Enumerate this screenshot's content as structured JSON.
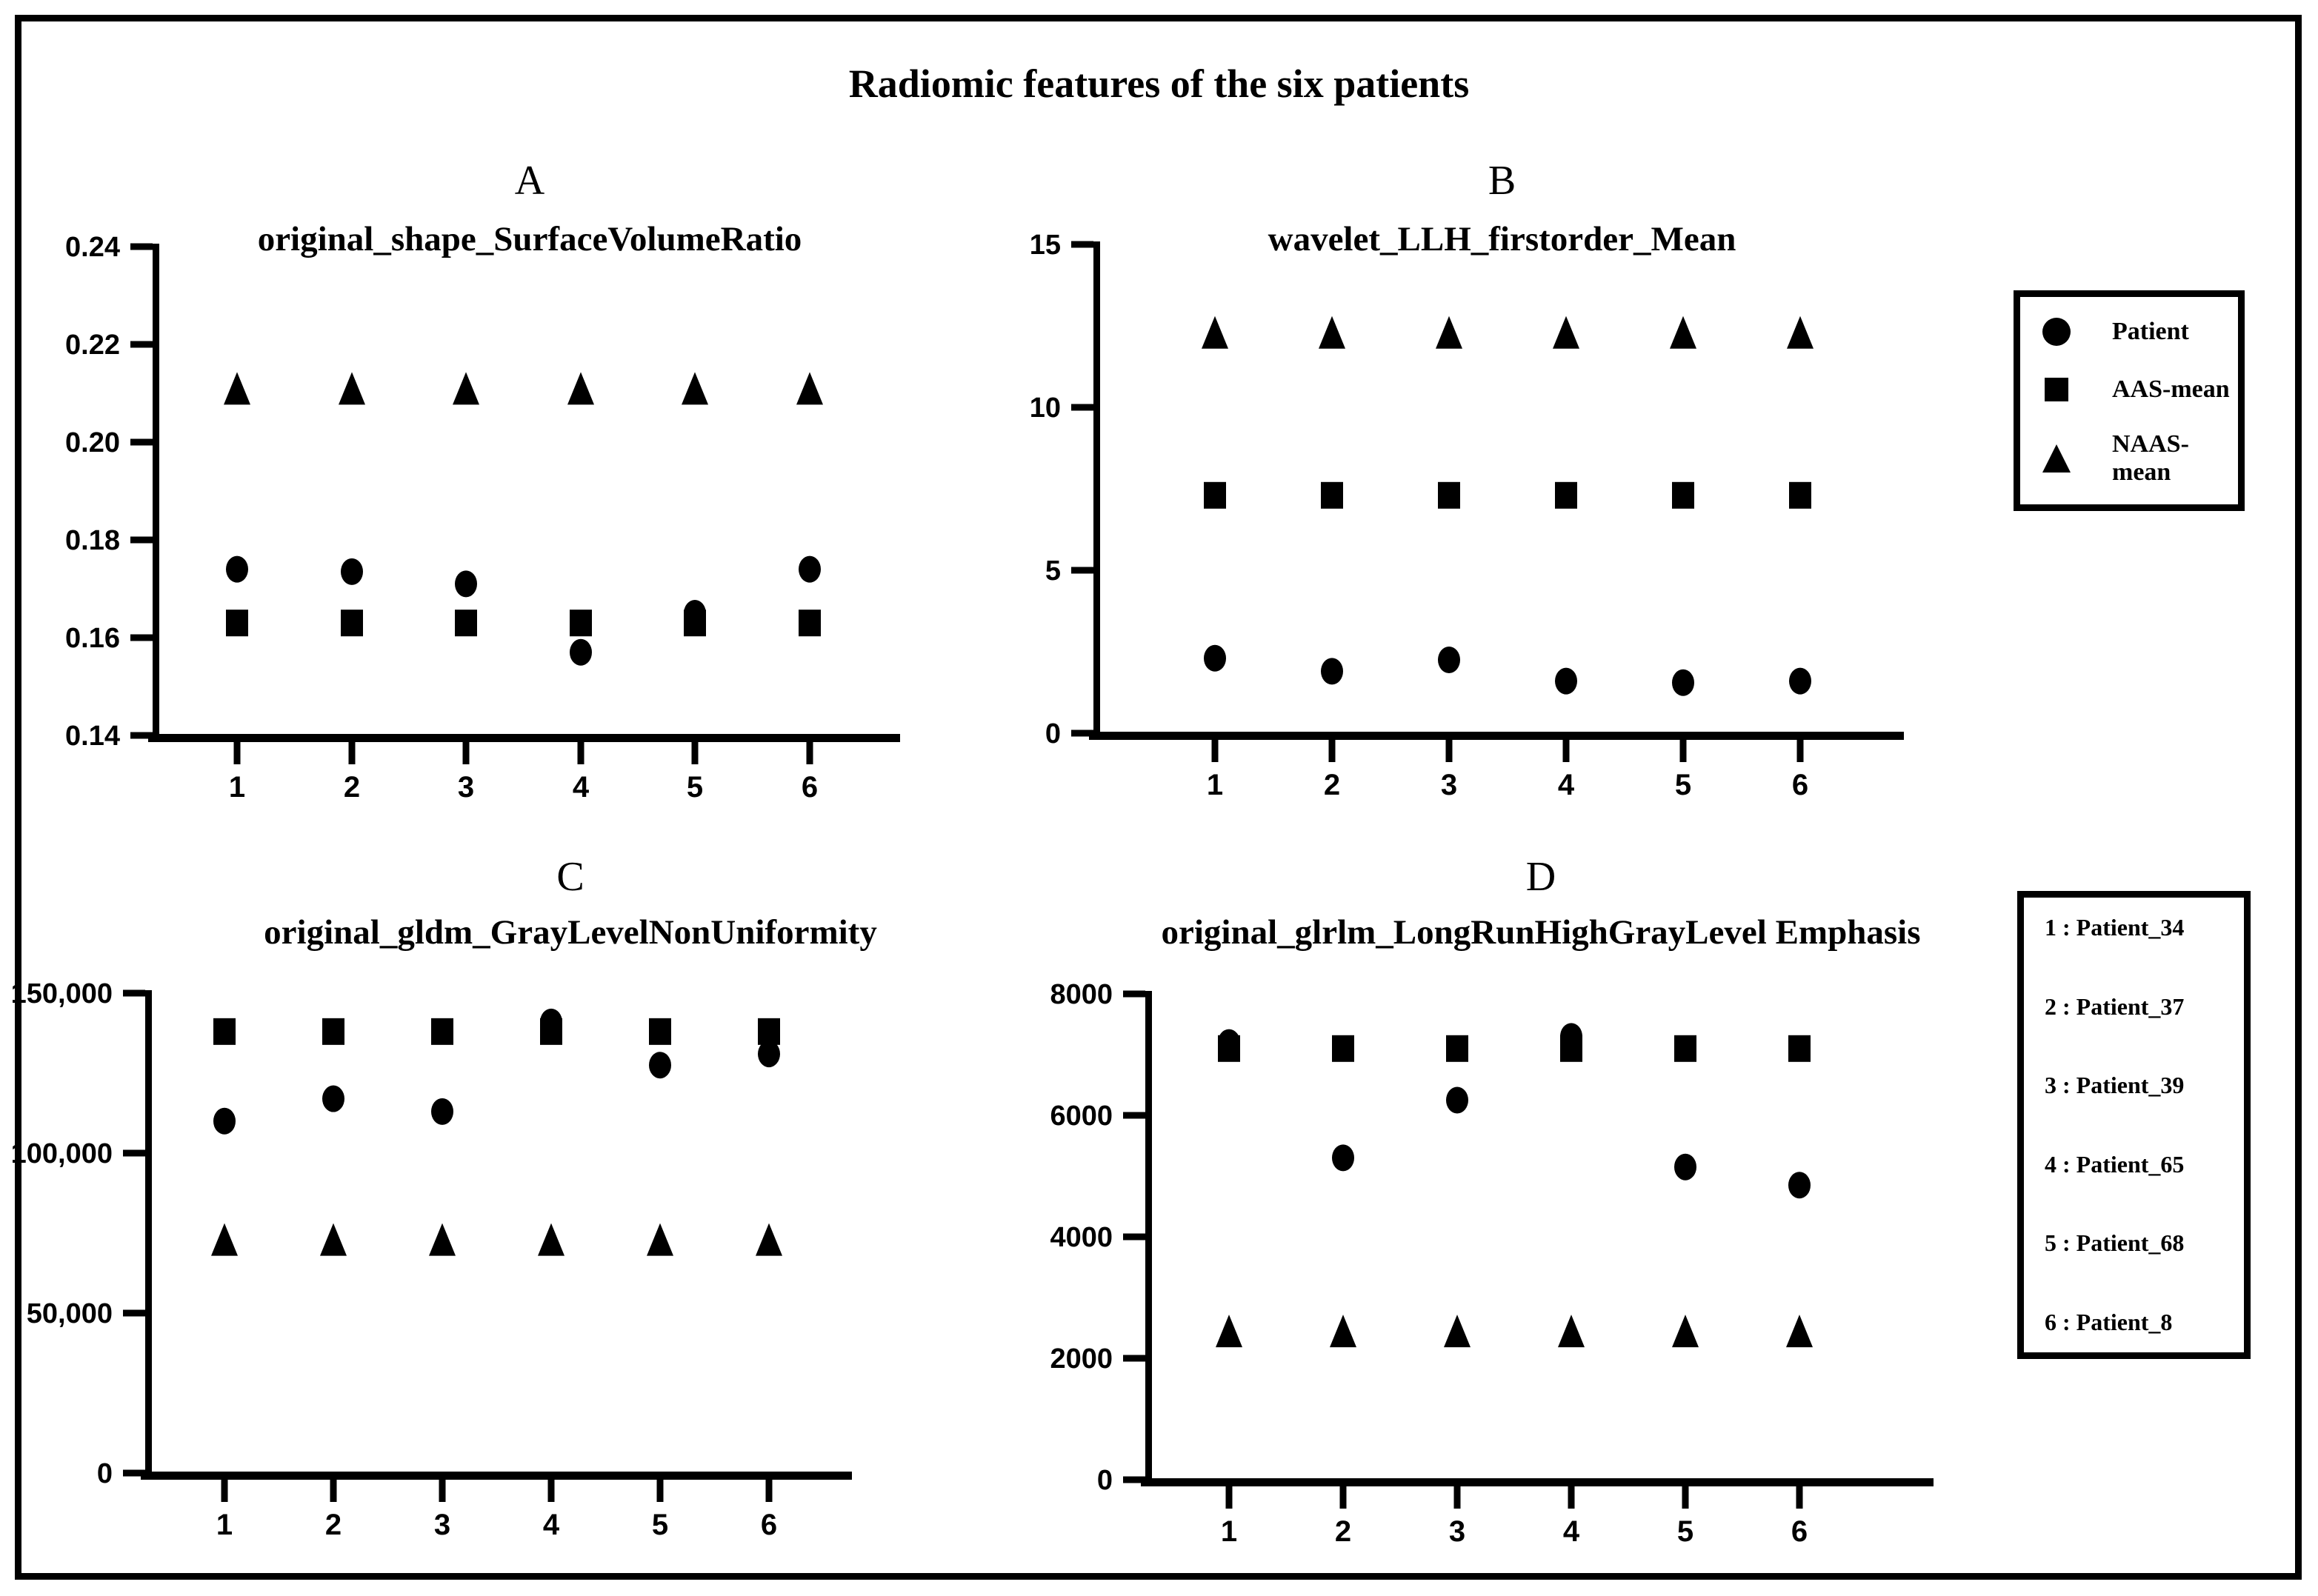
{
  "colors": {
    "foreground": "#000000",
    "background": "#ffffff"
  },
  "main_title": "Radiomic features of the six patients",
  "marker_legend": {
    "items": [
      {
        "marker": "circle",
        "label": "Patient"
      },
      {
        "marker": "square",
        "label": "AAS-mean"
      },
      {
        "marker": "triangle",
        "label": "NAAS-mean"
      }
    ]
  },
  "patient_legend": {
    "items": [
      "1 : Patient_34",
      "2 : Patient_37",
      "3 : Patient_39",
      "4 : Patient_65",
      "5 : Patient_68",
      "6 : Patient_8"
    ]
  },
  "chart_data": [
    {
      "id": "A",
      "panel_label": "A",
      "title": "original_shape_SurfaceVolumeRatio",
      "type": "scatter",
      "x": [
        1,
        2,
        3,
        4,
        5,
        6
      ],
      "xtick_labels": [
        "1",
        "2",
        "3",
        "4",
        "5",
        "6"
      ],
      "ylim": [
        0.14,
        0.24
      ],
      "yticks": [
        0.24,
        0.22,
        0.2,
        0.18,
        0.16,
        0.14
      ],
      "ytick_labels": [
        "0.24",
        "0.22",
        "0.20",
        "0.18",
        "0.16",
        "0.14"
      ],
      "grid": false,
      "series": [
        {
          "name": "Patient",
          "marker": "circle",
          "values": [
            0.174,
            0.1735,
            0.171,
            0.157,
            0.165,
            0.174
          ]
        },
        {
          "name": "AAS-mean",
          "marker": "square",
          "values": [
            0.163,
            0.163,
            0.163,
            0.163,
            0.163,
            0.163
          ]
        },
        {
          "name": "NAAS-mean",
          "marker": "triangle",
          "values": [
            0.211,
            0.211,
            0.211,
            0.211,
            0.211,
            0.211
          ]
        }
      ]
    },
    {
      "id": "B",
      "panel_label": "B",
      "title": "wavelet_LLH_firstorder_Mean",
      "type": "scatter",
      "x": [
        1,
        2,
        3,
        4,
        5,
        6
      ],
      "xtick_labels": [
        "1",
        "2",
        "3",
        "4",
        "5",
        "6"
      ],
      "ylim": [
        0,
        15
      ],
      "yticks": [
        15,
        10,
        5,
        0
      ],
      "ytick_labels": [
        "15",
        "10",
        "5",
        "0"
      ],
      "grid": false,
      "series": [
        {
          "name": "Patient",
          "marker": "circle",
          "values": [
            2.3,
            1.9,
            2.25,
            1.6,
            1.55,
            1.6
          ]
        },
        {
          "name": "AAS-mean",
          "marker": "square",
          "values": [
            7.3,
            7.3,
            7.3,
            7.3,
            7.3,
            7.3
          ]
        },
        {
          "name": "NAAS-mean",
          "marker": "triangle",
          "values": [
            12.3,
            12.3,
            12.3,
            12.3,
            12.3,
            12.3
          ]
        }
      ]
    },
    {
      "id": "C",
      "panel_label": "C",
      "title": "original_gldm_GrayLevelNonUniformity",
      "type": "scatter",
      "x": [
        1,
        2,
        3,
        4,
        5,
        6
      ],
      "xtick_labels": [
        "1",
        "2",
        "3",
        "4",
        "5",
        "6"
      ],
      "ylim": [
        0,
        150000
      ],
      "yticks": [
        150000,
        100000,
        50000,
        0
      ],
      "ytick_labels": [
        "150,000",
        "100,000",
        "50,000",
        "0"
      ],
      "grid": false,
      "series": [
        {
          "name": "Patient",
          "marker": "circle",
          "values": [
            110000,
            117000,
            113000,
            141000,
            127500,
            131000
          ]
        },
        {
          "name": "AAS-mean",
          "marker": "square",
          "values": [
            138000,
            138000,
            138000,
            138000,
            138000,
            138000
          ]
        },
        {
          "name": "NAAS-mean",
          "marker": "triangle",
          "values": [
            73000,
            73000,
            73000,
            73000,
            73000,
            73000
          ]
        }
      ]
    },
    {
      "id": "D",
      "panel_label": "D",
      "title": "original_glrlm_LongRunHighGrayLevel Emphasis",
      "type": "scatter",
      "x": [
        1,
        2,
        3,
        4,
        5,
        6
      ],
      "xtick_labels": [
        "1",
        "2",
        "3",
        "4",
        "5",
        "6"
      ],
      "ylim": [
        0,
        8000
      ],
      "yticks": [
        8000,
        6000,
        4000,
        2000,
        0
      ],
      "ytick_labels": [
        "8000",
        "6000",
        "4000",
        "2000",
        "0"
      ],
      "grid": false,
      "series": [
        {
          "name": "Patient",
          "marker": "circle",
          "values": [
            7200,
            5300,
            6250,
            7300,
            5150,
            4850
          ]
        },
        {
          "name": "AAS-mean",
          "marker": "square",
          "values": [
            7100,
            7100,
            7100,
            7100,
            7100,
            7100
          ]
        },
        {
          "name": "NAAS-mean",
          "marker": "triangle",
          "values": [
            2450,
            2450,
            2450,
            2450,
            2450,
            2450
          ]
        }
      ]
    }
  ]
}
